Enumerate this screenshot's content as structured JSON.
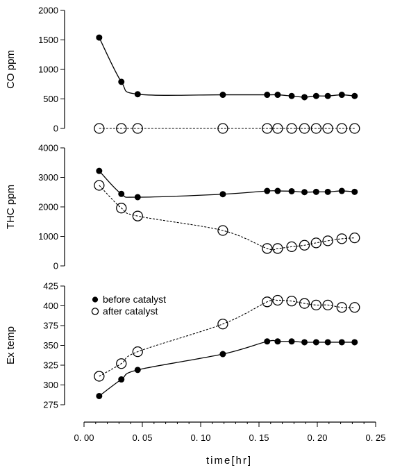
{
  "chart_data": {
    "type": "line",
    "panels": [
      {
        "name": "co",
        "ylabel": "CO ppm",
        "ylim": [
          0,
          2000
        ],
        "yticks": [
          0,
          500,
          1000,
          1500,
          2000
        ],
        "ytick_labels": [
          "0",
          "500",
          "1000",
          "1500",
          "2000"
        ],
        "series": [
          {
            "name": "before catalyst",
            "marker": "filled-circle",
            "line": "solid",
            "x": [
              0.013,
              0.032,
              0.046,
              0.119,
              0.157,
              0.166,
              0.178,
              0.189,
              0.199,
              0.209,
              0.221,
              0.232
            ],
            "y": [
              1540,
              790,
              580,
              570,
              570,
              570,
              550,
              530,
              550,
              550,
              570,
              550
            ]
          },
          {
            "name": "after catalyst",
            "marker": "open-circle",
            "line": "dashed",
            "x": [
              0.013,
              0.032,
              0.046,
              0.119,
              0.157,
              0.166,
              0.178,
              0.189,
              0.199,
              0.209,
              0.221,
              0.232
            ],
            "y": [
              0,
              0,
              0,
              0,
              0,
              0,
              0,
              0,
              0,
              0,
              0,
              0
            ]
          }
        ]
      },
      {
        "name": "thc",
        "ylabel": "THC ppm",
        "ylim": [
          0,
          4000
        ],
        "yticks": [
          0,
          1000,
          2000,
          3000,
          4000
        ],
        "ytick_labels": [
          "0",
          "1000",
          "2000",
          "3000",
          "4000"
        ],
        "series": [
          {
            "name": "before catalyst",
            "marker": "filled-circle",
            "line": "solid",
            "x": [
              0.013,
              0.032,
              0.046,
              0.119,
              0.157,
              0.166,
              0.178,
              0.189,
              0.199,
              0.209,
              0.221,
              0.232
            ],
            "y": [
              3220,
              2440,
              2330,
              2430,
              2540,
              2540,
              2530,
              2500,
              2510,
              2510,
              2540,
              2510
            ]
          },
          {
            "name": "after catalyst",
            "marker": "open-circle",
            "line": "dashed",
            "x": [
              0.013,
              0.032,
              0.046,
              0.119,
              0.157,
              0.166,
              0.178,
              0.189,
              0.199,
              0.209,
              0.221,
              0.232
            ],
            "y": [
              2730,
              1960,
              1690,
              1200,
              590,
              590,
              650,
              700,
              780,
              850,
              920,
              950
            ]
          }
        ]
      },
      {
        "name": "temp",
        "ylabel": "Ex temp",
        "ylim": [
          275,
          425
        ],
        "yticks": [
          275,
          300,
          325,
          350,
          375,
          400,
          425
        ],
        "ytick_labels": [
          "275",
          "300",
          "325",
          "350",
          "375",
          "400",
          "425"
        ],
        "series": [
          {
            "name": "before catalyst",
            "marker": "filled-circle",
            "line": "solid",
            "x": [
              0.013,
              0.032,
              0.046,
              0.119,
              0.157,
              0.166,
              0.178,
              0.189,
              0.199,
              0.209,
              0.221,
              0.232
            ],
            "y": [
              286,
              307,
              319,
              339,
              355,
              355,
              355,
              354,
              354,
              354,
              354,
              354
            ]
          },
          {
            "name": "after catalyst",
            "marker": "open-circle",
            "line": "dashed",
            "x": [
              0.013,
              0.032,
              0.046,
              0.119,
              0.157,
              0.166,
              0.178,
              0.189,
              0.199,
              0.209,
              0.221,
              0.232
            ],
            "y": [
              311,
              327,
              342,
              377,
              405,
              407,
              406,
              403,
              401,
              401,
              398,
              398
            ]
          }
        ]
      }
    ],
    "xlim": [
      0,
      0.25
    ],
    "xticks": [
      0,
      0.05,
      0.1,
      0.15,
      0.2,
      0.25
    ],
    "xtick_labels": [
      "0. 00",
      "0. 05",
      "0. 10",
      "0. 15",
      "0. 20",
      "0. 25"
    ],
    "xlabel": "time[hr]",
    "legend": {
      "placement": "upper-left of bottom panel",
      "entries": [
        {
          "label": "before catalyst",
          "marker": "filled-circle"
        },
        {
          "label": "after catalyst",
          "marker": "open-circle"
        }
      ]
    },
    "grid": false
  }
}
